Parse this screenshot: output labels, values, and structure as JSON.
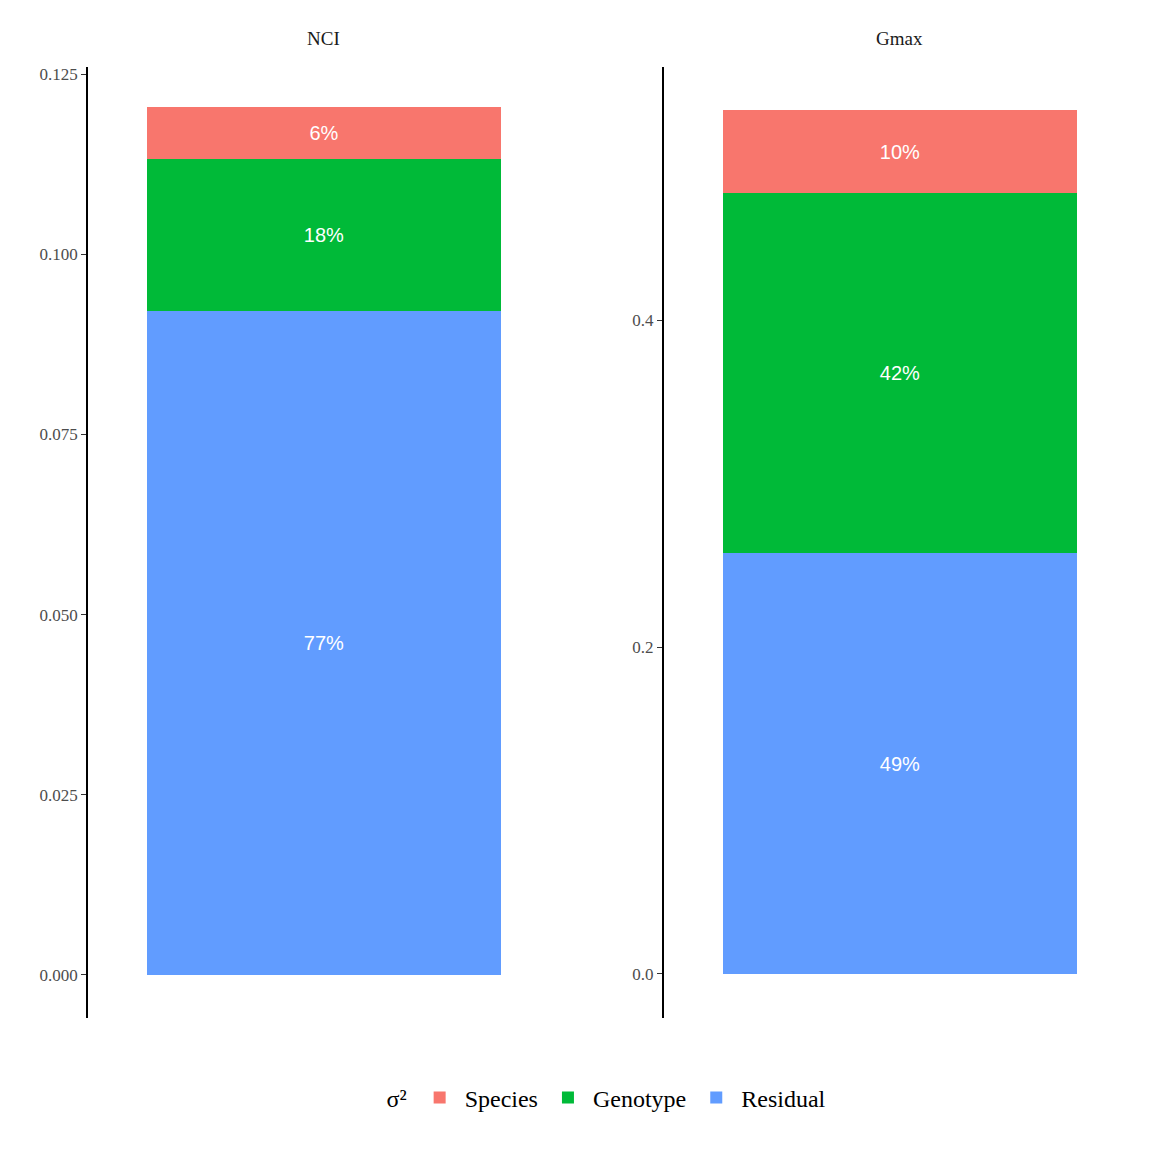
{
  "chart_data": [
    {
      "type": "bar",
      "title": "NCI",
      "stacked": true,
      "categories": [
        null
      ],
      "legend": "bottom",
      "legend_title": "σ²",
      "series": [
        {
          "name": "Residual",
          "color": "#619CFF",
          "values": [
            0.0921
          ],
          "segment_labels": [
            "77%"
          ]
        },
        {
          "name": "Genotype",
          "color": "#00BA38",
          "values": [
            0.0212
          ],
          "segment_labels": [
            "18%"
          ]
        },
        {
          "name": "Species",
          "color": "#F8766D",
          "values": [
            0.0071
          ],
          "segment_labels": [
            "6%"
          ]
        }
      ],
      "ylim": [
        -0.006,
        0.126
      ],
      "yticks": [
        {
          "value": 0,
          "label": "0.000"
        },
        {
          "value": 0.025,
          "label": "0.025"
        },
        {
          "value": 0.05,
          "label": "0.050"
        },
        {
          "value": 0.075,
          "label": "0.075"
        },
        {
          "value": 0.1,
          "label": "0.100"
        },
        {
          "value": 0.125,
          "label": "0.125"
        }
      ]
    },
    {
      "type": "bar",
      "title": "Gmax",
      "stacked": true,
      "categories": [
        null
      ],
      "series": [
        {
          "name": "Residual",
          "color": "#619CFF",
          "values": [
            0.2575
          ],
          "segment_labels": [
            "49%"
          ]
        },
        {
          "name": "Genotype",
          "color": "#00BA38",
          "values": [
            0.2202
          ],
          "segment_labels": [
            "42%"
          ]
        },
        {
          "name": "Species",
          "color": "#F8766D",
          "values": [
            0.0508
          ],
          "segment_labels": [
            "10%"
          ]
        }
      ],
      "ylim": [
        -0.027,
        0.555
      ],
      "yticks": [
        {
          "value": 0,
          "label": "0.0"
        },
        0.2,
        0.4
      ]
    }
  ]
}
